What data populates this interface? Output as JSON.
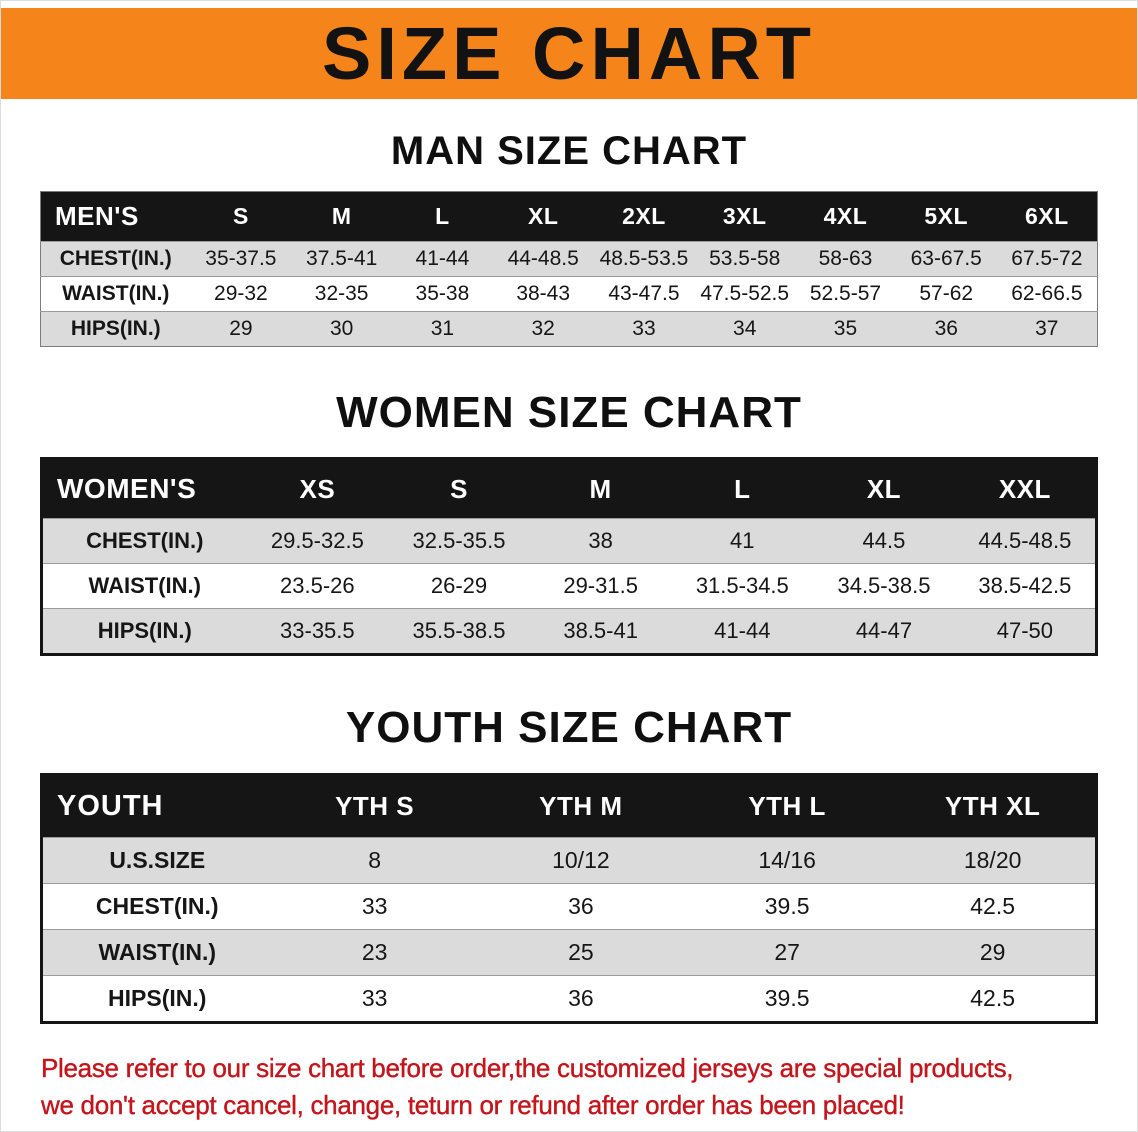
{
  "banner": {
    "title": "SIZE CHART",
    "bg_color": "#F5851A"
  },
  "sections": {
    "men": {
      "heading": "MAN SIZE CHART",
      "table": {
        "header": [
          "MEN'S",
          "S",
          "M",
          "L",
          "XL",
          "2XL",
          "3XL",
          "4XL",
          "5XL",
          "6XL"
        ],
        "rows": [
          [
            "CHEST(IN.)",
            "35-37.5",
            "37.5-41",
            "41-44",
            "44-48.5",
            "48.5-53.5",
            "53.5-58",
            "58-63",
            "63-67.5",
            "67.5-72"
          ],
          [
            "WAIST(IN.)",
            "29-32",
            "32-35",
            "35-38",
            "38-43",
            "43-47.5",
            "47.5-52.5",
            "52.5-57",
            "57-62",
            "62-66.5"
          ],
          [
            "HIPS(IN.)",
            "29",
            "30",
            "31",
            "32",
            "33",
            "34",
            "35",
            "36",
            "37"
          ]
        ]
      }
    },
    "women": {
      "heading": "WOMEN SIZE CHART",
      "table": {
        "header": [
          "WOMEN'S",
          "XS",
          "S",
          "M",
          "L",
          "XL",
          "XXL"
        ],
        "rows": [
          [
            "CHEST(IN.)",
            "29.5-32.5",
            "32.5-35.5",
            "38",
            "41",
            "44.5",
            "44.5-48.5"
          ],
          [
            "WAIST(IN.)",
            "23.5-26",
            "26-29",
            "29-31.5",
            "31.5-34.5",
            "34.5-38.5",
            "38.5-42.5"
          ],
          [
            "HIPS(IN.)",
            "33-35.5",
            "35.5-38.5",
            "38.5-41",
            "41-44",
            "44-47",
            "47-50"
          ]
        ]
      }
    },
    "youth": {
      "heading": "YOUTH SIZE CHART",
      "table": {
        "header": [
          "YOUTH",
          "YTH S",
          "YTH M",
          "YTH L",
          "YTH XL"
        ],
        "rows": [
          [
            "U.S.SIZE",
            "8",
            "10/12",
            "14/16",
            "18/20"
          ],
          [
            "CHEST(IN.)",
            "33",
            "36",
            "39.5",
            "42.5"
          ],
          [
            "WAIST(IN.)",
            "23",
            "25",
            "27",
            "29"
          ],
          [
            "HIPS(IN.)",
            "33",
            "36",
            "39.5",
            "42.5"
          ]
        ]
      }
    }
  },
  "disclaimer": {
    "color": "#C3161C",
    "line1": "Please refer to our size chart before order,the customized jerseys are special products,",
    "line2": "we don't accept cancel, change, teturn or refund after order has been placed!"
  }
}
